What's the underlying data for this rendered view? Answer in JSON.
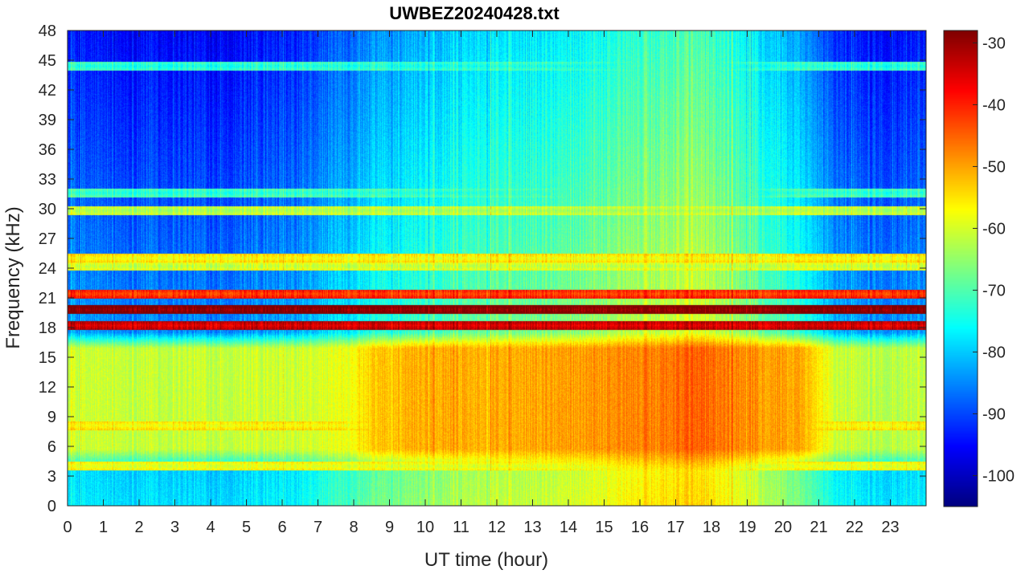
{
  "chart_data": {
    "type": "heatmap",
    "title": "UWBEZ20240428.txt",
    "xlabel": "UT time (hour)",
    "ylabel": "Frequency (kHz)",
    "xlim": [
      0,
      24
    ],
    "ylim": [
      0,
      48
    ],
    "x_ticks": [
      "0",
      "1",
      "2",
      "3",
      "4",
      "5",
      "6",
      "7",
      "8",
      "9",
      "10",
      "11",
      "12",
      "13",
      "14",
      "15",
      "16",
      "17",
      "18",
      "19",
      "20",
      "21",
      "22",
      "23"
    ],
    "y_ticks": [
      "0",
      "3",
      "6",
      "9",
      "12",
      "15",
      "18",
      "21",
      "24",
      "27",
      "30",
      "33",
      "36",
      "39",
      "42",
      "45",
      "48"
    ],
    "colorbar": {
      "colormap": "jet",
      "range": [
        -105,
        -28
      ],
      "ticks": [
        "-100",
        "-90",
        "-80",
        "-70",
        "-60",
        "-50",
        "-40",
        "-30"
      ]
    },
    "background_levels_by_hour": [
      -86,
      -87,
      -86,
      -87,
      -87,
      -86,
      -85,
      -80,
      -77,
      -74,
      -72,
      -70,
      -70,
      -69,
      -67,
      -65,
      -63,
      -62,
      -65,
      -70,
      -76,
      -84,
      -86,
      -86
    ],
    "broadband_5_17kHz_levels_by_hour": [
      -61,
      -61,
      -61,
      -61,
      -61,
      -61,
      -61,
      -59,
      -54,
      -51,
      -50,
      -51,
      -51,
      -50,
      -49,
      -48,
      -47,
      -45,
      -47,
      -49,
      -51,
      -61,
      -62,
      -62
    ],
    "narrowband_lines": [
      {
        "freq_khz": 19.8,
        "level": -30
      },
      {
        "freq_khz": 18.2,
        "level": -36
      },
      {
        "freq_khz": 21.4,
        "level": -43
      },
      {
        "freq_khz": 25.0,
        "level": -58
      },
      {
        "freq_khz": 24.2,
        "level": -62
      },
      {
        "freq_khz": 4.0,
        "level": -60
      },
      {
        "freq_khz": 44.4,
        "level": -75
      },
      {
        "freq_khz": 31.6,
        "level": -74
      },
      {
        "freq_khz": 29.8,
        "level": -64
      },
      {
        "freq_khz": 8.1,
        "level": -58
      }
    ],
    "colors": {
      "axis": "#262626",
      "frame": "#262626"
    }
  }
}
